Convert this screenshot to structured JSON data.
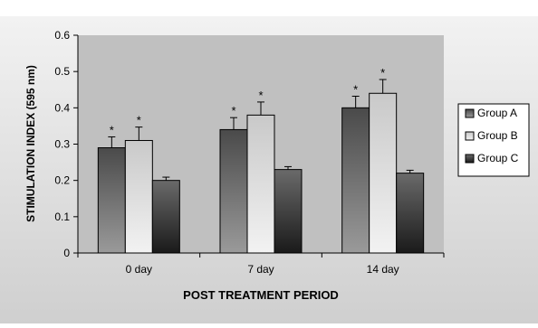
{
  "chart_data": {
    "type": "bar",
    "title": "",
    "xlabel": "POST TREATMENT PERIOD",
    "ylabel": "STIMULATION INDEX (595 nm)",
    "ylim": [
      0,
      0.6
    ],
    "yticks": [
      "0",
      "0.1",
      "0.2",
      "0.3",
      "0.4",
      "0.5",
      "0.6"
    ],
    "categories": [
      "0 day",
      "7 day",
      "14 day"
    ],
    "series": [
      {
        "name": "Group A",
        "values": [
          0.29,
          0.34,
          0.4
        ],
        "errors": [
          0.03,
          0.033,
          0.032
        ],
        "significance": [
          "*",
          "*",
          "*"
        ]
      },
      {
        "name": "Group B",
        "values": [
          0.31,
          0.38,
          0.44
        ],
        "errors": [
          0.037,
          0.036,
          0.038
        ],
        "significance": [
          "*",
          "*",
          "*"
        ]
      },
      {
        "name": "Group C",
        "values": [
          0.2,
          0.23,
          0.22
        ],
        "errors": [
          0.009,
          0.008,
          0.008
        ],
        "significance": [
          "",
          "",
          ""
        ]
      }
    ],
    "grid": false,
    "legend_position": "right",
    "colors": {
      "plot_background": "#c0c0c0",
      "chart_background": "#d9d9d9",
      "group_a_fill": "#6b6b6b",
      "group_b_fill": "#d4d4d4",
      "group_c_fill": "#333333",
      "text": "#000000"
    }
  }
}
